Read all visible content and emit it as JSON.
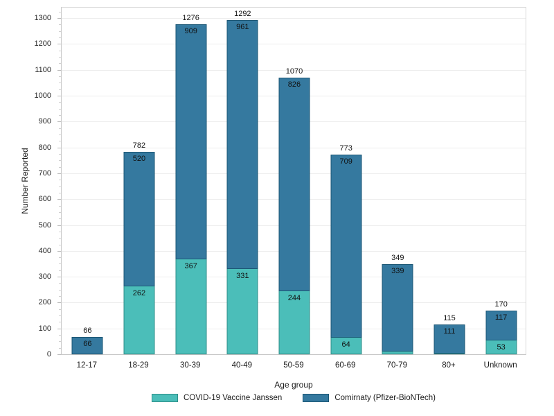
{
  "chart_data": {
    "type": "bar",
    "stacked": true,
    "title": "",
    "xlabel": "Age group",
    "ylabel": "Number Reported",
    "categories": [
      "12-17",
      "18-29",
      "30-39",
      "40-49",
      "50-59",
      "60-69",
      "70-79",
      "80+",
      "Unknown"
    ],
    "series": [
      {
        "name": "COVID-19 Vaccine Janssen",
        "fill": "#4BBEB9",
        "border": "#2F8F89",
        "values": [
          0,
          262,
          367,
          331,
          244,
          64,
          10,
          4,
          53
        ],
        "labels": [
          "",
          "262",
          "367",
          "331",
          "244",
          "64",
          "",
          "",
          "53"
        ]
      },
      {
        "name": "Comirnaty (Pfizer-BioNTech)",
        "fill": "#35799F",
        "border": "#1B5674",
        "values": [
          66,
          520,
          909,
          961,
          826,
          709,
          339,
          111,
          117
        ],
        "labels": [
          "66",
          "520",
          "909",
          "961",
          "826",
          "709",
          "339",
          "111",
          "117"
        ]
      }
    ],
    "totals": [
      66,
      782,
      1276,
      1292,
      1070,
      773,
      349,
      115,
      170
    ],
    "ylim": [
      0,
      1346
    ],
    "yticks": [
      0,
      100,
      200,
      300,
      400,
      500,
      600,
      700,
      800,
      900,
      1000,
      1100,
      1200,
      1300
    ],
    "minor_tick_step": 25,
    "grid": true,
    "legend_position": "bottom",
    "colors": {
      "grid": "#EDEDED",
      "axis": "#C8C8C8",
      "text": "#1A1A1A"
    }
  }
}
